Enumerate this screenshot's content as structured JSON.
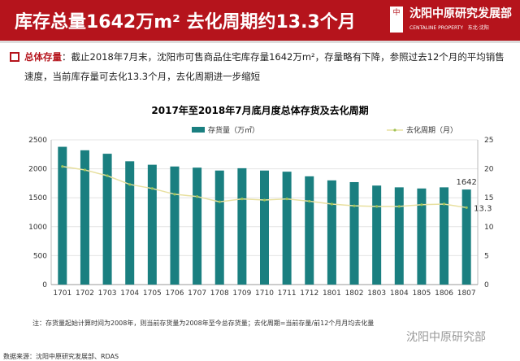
{
  "header": {
    "title": "库存总量1642万m² 去化周期约13.3个月",
    "logo_cn": "沈阳中原研究发展部",
    "logo_en": "CENTALINE PROPERTY",
    "logo_region": "东北·沈阳",
    "brand_color": "#b5141c"
  },
  "summary": {
    "keyword": "总体存量",
    "text": "：截止2018年7月末，沈阳市可售商品住宅库存量1642万m²，存量略有下降，参照过去12个月的平均销售速度，当前库存量可去化13.3个月，去化周期进一步缩短"
  },
  "chart_data": {
    "type": "bar+line",
    "title": "2017年至2018年7月底月度总体存货及去化周期",
    "categories": [
      "1701",
      "1702",
      "1703",
      "1704",
      "1705",
      "1706",
      "1707",
      "1708",
      "1709",
      "1710",
      "1711",
      "1712",
      "1801",
      "1802",
      "1803",
      "1804",
      "1805",
      "1806",
      "1807"
    ],
    "series": [
      {
        "name": "存货量（万㎡）",
        "type": "bar",
        "axis": "left",
        "color": "#1a7f80",
        "values": [
          2380,
          2320,
          2260,
          2130,
          2070,
          2040,
          2020,
          1970,
          2010,
          1970,
          1950,
          1870,
          1800,
          1770,
          1710,
          1680,
          1660,
          1680,
          1642
        ]
      },
      {
        "name": "去化周期（月）",
        "type": "line",
        "axis": "right",
        "color": "#e8e0a0",
        "values": [
          20.4,
          19.8,
          18.8,
          17.3,
          16.6,
          15.6,
          15.2,
          14.3,
          14.8,
          14.6,
          14.8,
          14.4,
          13.9,
          13.6,
          13.5,
          13.5,
          13.8,
          13.9,
          13.3
        ]
      }
    ],
    "ylim_left": [
      0,
      2500
    ],
    "yticks_left": [
      "0",
      "500",
      "1000",
      "1500",
      "2000",
      "2500"
    ],
    "ylim_right": [
      0,
      25
    ],
    "yticks_right": [
      "0",
      "5",
      "10",
      "15",
      "20",
      "25"
    ],
    "data_labels": {
      "bar_last": "1642",
      "line_last": "13.3"
    },
    "grid": true,
    "legend": "top"
  },
  "note": "注：存货量起始计算时间为2008年，则当前存货量为2008年至今总存货量；去化周期=当前存量/前12个月月均去化量",
  "watermark": "沈阳中原研究部",
  "source": "数据来源：沈阳中原研究发展部、RDAS"
}
